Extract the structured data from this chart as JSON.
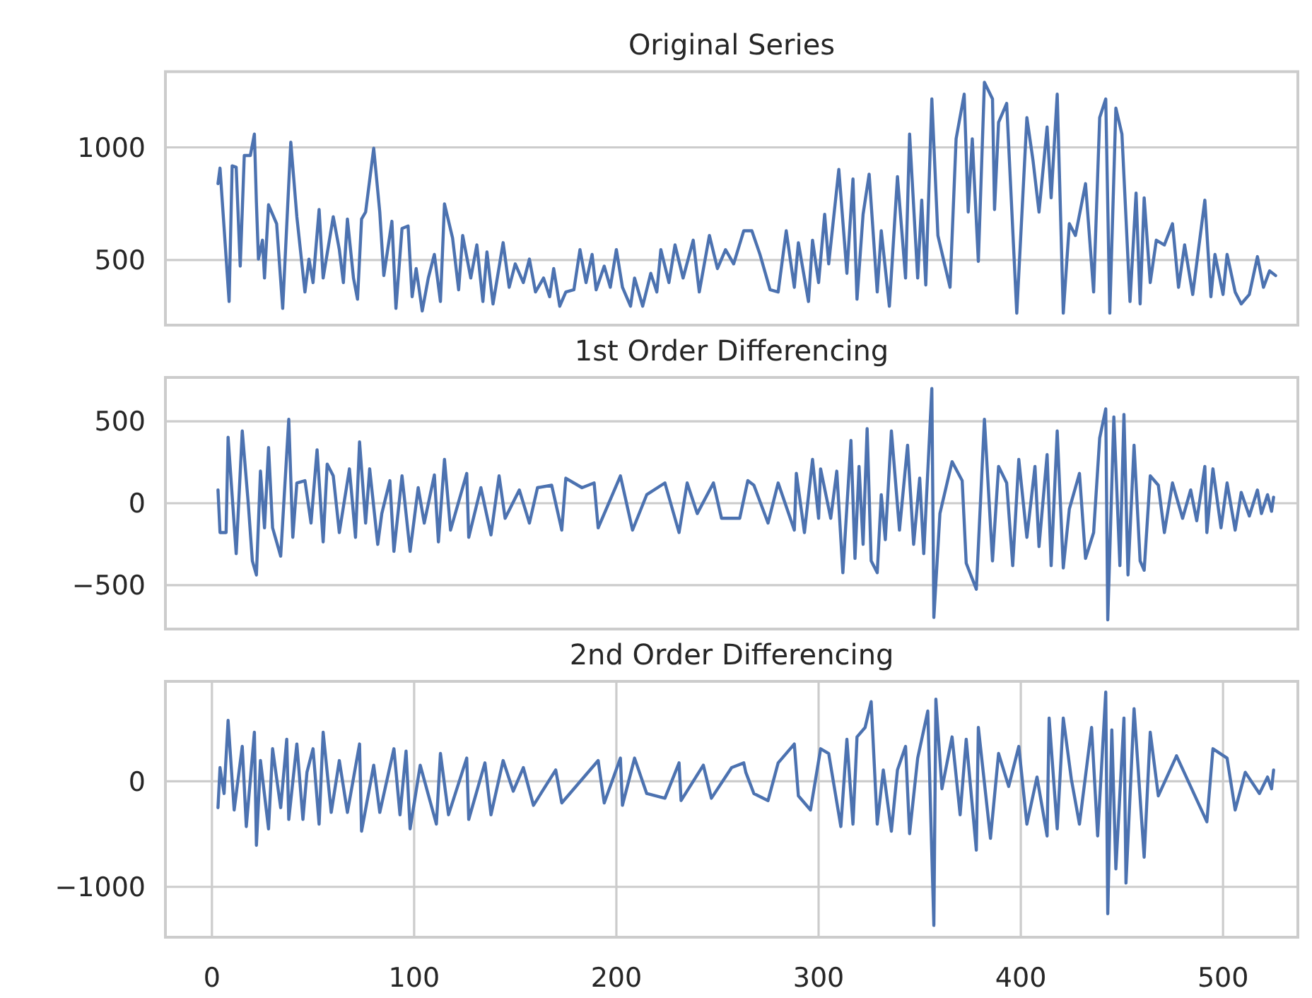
{
  "chart_data": [
    {
      "type": "line",
      "title": "Original Series",
      "xlim": [
        -23,
        537
      ],
      "ylim": [
        211,
        1336
      ],
      "yticks": [
        500,
        1000
      ],
      "grid": "y",
      "tick_labels": "y",
      "x": [
        3,
        4,
        8.5,
        10,
        12,
        14,
        16,
        19,
        21,
        22,
        23,
        25,
        26,
        28,
        32,
        35,
        39,
        42,
        46,
        48,
        50,
        53,
        55,
        60,
        63,
        65,
        67,
        70,
        72,
        74,
        76,
        80,
        83,
        85,
        89,
        91,
        94,
        97,
        99,
        101,
        104,
        107,
        110,
        113,
        115,
        119,
        122,
        124,
        128,
        131,
        134,
        136,
        139,
        144,
        147,
        150,
        154,
        157,
        160,
        164,
        167,
        169,
        172,
        175,
        179,
        182,
        185,
        188,
        190,
        194,
        197,
        200,
        203,
        207,
        209,
        213,
        217,
        220,
        222,
        226,
        229,
        233,
        238,
        241,
        246,
        250,
        254,
        258,
        263,
        267,
        271,
        276,
        280,
        284,
        288,
        290,
        295,
        297,
        300,
        303,
        305,
        310,
        314,
        317,
        319,
        322,
        325,
        329,
        331,
        335,
        339,
        343,
        345,
        349,
        351,
        353,
        356,
        359,
        365,
        368,
        372,
        374,
        376,
        379,
        382,
        386,
        387,
        389,
        393,
        398,
        403,
        406,
        409,
        413,
        415,
        418,
        421,
        424,
        427,
        432,
        436,
        439,
        442,
        444,
        447,
        450,
        454,
        457,
        459,
        461,
        464,
        467,
        471,
        475,
        478,
        481,
        485,
        491,
        494,
        496,
        500,
        502,
        506,
        509,
        513,
        517,
        520,
        523,
        526
      ],
      "series": [
        {
          "color": "#4c72b0",
          "values": [
            839,
            908,
            316,
            918,
            912,
            473,
            964,
            964,
            1059,
            755,
            504,
            588,
            420,
            745,
            661,
            285,
            1023,
            692,
            358,
            504,
            400,
            724,
            420,
            692,
            546,
            400,
            682,
            420,
            326,
            682,
            713,
            996,
            713,
            431,
            672,
            285,
            640,
            651,
            337,
            462,
            274,
            420,
            525,
            316,
            749,
            598,
            368,
            609,
            420,
            567,
            316,
            536,
            305,
            577,
            379,
            483,
            400,
            504,
            358,
            420,
            337,
            462,
            295,
            358,
            368,
            546,
            400,
            525,
            368,
            473,
            379,
            546,
            379,
            295,
            420,
            295,
            441,
            358,
            546,
            400,
            567,
            420,
            588,
            358,
            609,
            462,
            546,
            483,
            630,
            630,
            525,
            368,
            358,
            630,
            379,
            577,
            316,
            588,
            400,
            703,
            483,
            902,
            441,
            860,
            326,
            703,
            881,
            358,
            630,
            295,
            870,
            420,
            1059,
            420,
            766,
            389,
            1215,
            609,
            379,
            1038,
            1236,
            713,
            1038,
            494,
            1289,
            1215,
            724,
            1111,
            1195,
            264,
            1132,
            944,
            713,
            1090,
            776,
            1236,
            264,
            661,
            609,
            839,
            358,
            1132,
            1215,
            264,
            1174,
            1059,
            316,
            797,
            305,
            776,
            400,
            588,
            567,
            661,
            379,
            567,
            347,
            766,
            337,
            525,
            347,
            525,
            358,
            305,
            347,
            515,
            379,
            452,
            431
          ]
        }
      ]
    },
    {
      "type": "line",
      "title": "1st Order Differencing",
      "xlim": [
        -23,
        537
      ],
      "ylim": [
        -768,
        768
      ],
      "yticks": [
        -500,
        0,
        500
      ],
      "grid": "y",
      "tick_labels": "y",
      "x": [
        3,
        4,
        7,
        8,
        12,
        15,
        18,
        20,
        22,
        24,
        26,
        28,
        30,
        34,
        38,
        40,
        42,
        46,
        49,
        52,
        55,
        57,
        60,
        63,
        68,
        71,
        73,
        76,
        78,
        82,
        84,
        88,
        90,
        94,
        98,
        102,
        105,
        110,
        112,
        115,
        118,
        126,
        127,
        133,
        138,
        142,
        145,
        152,
        157,
        161,
        168,
        173,
        175,
        183,
        189,
        191,
        202,
        208,
        215,
        224,
        231,
        235,
        240,
        248,
        252,
        261,
        265,
        268,
        275,
        280,
        288,
        289,
        293,
        297,
        300,
        301,
        306,
        309,
        312,
        316,
        318,
        320,
        322,
        324,
        326,
        329,
        331,
        333,
        336,
        340,
        344,
        347,
        350,
        352,
        356,
        357,
        360,
        366,
        371,
        373,
        378,
        382,
        386,
        389,
        393,
        396,
        399,
        403,
        407,
        409,
        413,
        415,
        418,
        421,
        424,
        429,
        432,
        436,
        439,
        442,
        443,
        446,
        449,
        451,
        453,
        456,
        459,
        461,
        464,
        468,
        471,
        475,
        480,
        484,
        487,
        491,
        492,
        495,
        499,
        502,
        506,
        509,
        513,
        517,
        519,
        522,
        524,
        525
      ],
      "series": [
        {
          "color": "#4c72b0",
          "values": [
            81,
            -179,
            -179,
            403,
            -308,
            441,
            -6,
            -352,
            -438,
            196,
            -150,
            340,
            -150,
            -323,
            513,
            -208,
            124,
            138,
            -121,
            326,
            -236,
            239,
            167,
            -179,
            210,
            -208,
            375,
            -121,
            210,
            -251,
            -63,
            138,
            -294,
            167,
            -294,
            95,
            -121,
            173,
            -236,
            268,
            -164,
            182,
            -208,
            95,
            -193,
            167,
            -92,
            81,
            -121,
            95,
            110,
            -164,
            153,
            95,
            124,
            -150,
            167,
            -164,
            52,
            124,
            -179,
            124,
            -63,
            124,
            -92,
            -92,
            138,
            110,
            -121,
            124,
            -164,
            182,
            -179,
            268,
            -92,
            210,
            -92,
            196,
            -424,
            383,
            -337,
            225,
            -251,
            455,
            -352,
            -424,
            52,
            -222,
            441,
            -164,
            354,
            -251,
            153,
            -308,
            700,
            -697,
            -63,
            254,
            138,
            -366,
            -525,
            513,
            -352,
            225,
            124,
            -381,
            268,
            -208,
            225,
            -265,
            297,
            -381,
            441,
            -395,
            -35,
            182,
            -337,
            -179,
            398,
            576,
            -712,
            527,
            -381,
            542,
            -438,
            354,
            -352,
            -409,
            167,
            110,
            -179,
            124,
            -92,
            81,
            -107,
            225,
            -179,
            210,
            -150,
            124,
            -164,
            66,
            -78,
            81,
            -63,
            52,
            -49,
            37
          ]
        }
      ]
    },
    {
      "type": "line",
      "title": "2nd Order Differencing",
      "xlim": [
        -23,
        537
      ],
      "ylim": [
        -1477,
        946
      ],
      "yticks": [
        -1000,
        0
      ],
      "xticks": [
        0,
        100,
        200,
        300,
        400,
        500
      ],
      "grid": true,
      "x": [
        3,
        4,
        6,
        8,
        11,
        15,
        17,
        21,
        22,
        24,
        28,
        30,
        34,
        37,
        38,
        42,
        45,
        47,
        50,
        53,
        55,
        59,
        63,
        67,
        73,
        74,
        80,
        83,
        90,
        93,
        96,
        98,
        103,
        111,
        113,
        117,
        126,
        127,
        135,
        138,
        144,
        149,
        154,
        159,
        170,
        173,
        191,
        194,
        202,
        203,
        209,
        215,
        224,
        231,
        232,
        243,
        247,
        257,
        263,
        264,
        268,
        275,
        280,
        288,
        290,
        296,
        301,
        305,
        311,
        314,
        317,
        319,
        323,
        326,
        329,
        332,
        336,
        339,
        343,
        345,
        349,
        354,
        357,
        358,
        361,
        366,
        370,
        373,
        378,
        379,
        385,
        389,
        394,
        399,
        403,
        408,
        413,
        414,
        418,
        421,
        425,
        429,
        435,
        438,
        442,
        443,
        445,
        447,
        451,
        452,
        456,
        461,
        464,
        468,
        477,
        492,
        495,
        502,
        506,
        511,
        518,
        522,
        524,
        525
      ],
      "series": [
        {
          "color": "#4c72b0",
          "values": [
            -250,
            129,
            -116,
            576,
            -272,
            330,
            -429,
            464,
            -607,
            196,
            -451,
            308,
            -250,
            397,
            -362,
            353,
            -362,
            85,
            308,
            -406,
            464,
            -295,
            196,
            -295,
            353,
            -473,
            152,
            -295,
            308,
            -317,
            286,
            -451,
            152,
            -406,
            263,
            -317,
            219,
            -362,
            174,
            -317,
            196,
            -94,
            129,
            -228,
            107,
            -205,
            196,
            -205,
            219,
            -228,
            219,
            -116,
            -161,
            174,
            -183,
            152,
            -161,
            129,
            174,
            85,
            -116,
            -183,
            174,
            353,
            -138,
            -272,
            308,
            263,
            -429,
            397,
            -406,
            420,
            509,
            754,
            -406,
            107,
            -473,
            107,
            330,
            -496,
            219,
            665,
            -1366,
            777,
            -71,
            420,
            -317,
            397,
            -652,
            509,
            -540,
            263,
            -49,
            330,
            -406,
            40,
            -518,
            598,
            -451,
            598,
            18,
            -406,
            509,
            -518,
            844,
            -1254,
            487,
            -830,
            598,
            -964,
            687,
            -719,
            464,
            -138,
            241,
            -384,
            308,
            219,
            -272,
            85,
            -116,
            40,
            -71,
            107
          ]
        }
      ]
    }
  ]
}
